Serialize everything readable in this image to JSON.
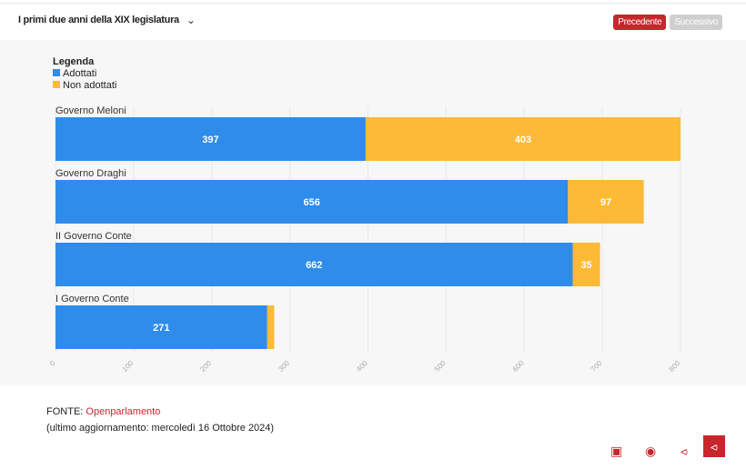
{
  "header": {
    "title": "I primi due anni della XIX legislatura",
    "prev_label": "Precedente",
    "next_label": "Successivo"
  },
  "legend": {
    "title": "Legenda"
  },
  "chart_data": {
    "type": "bar",
    "orientation": "horizontal",
    "stacked": true,
    "categories": [
      "Governo Meloni",
      "Governo Draghi",
      "II Governo Conte",
      "I Governo Conte"
    ],
    "series": [
      {
        "name": "Adottati",
        "color": "#2f8ceb",
        "values": [
          397,
          656,
          662,
          271
        ],
        "labels": [
          "397",
          "656",
          "662",
          "271"
        ]
      },
      {
        "name": "Non adottati",
        "color": "#fdba36",
        "values": [
          403,
          97,
          35,
          9
        ],
        "labels": [
          "403",
          "97",
          "35",
          ""
        ]
      }
    ],
    "xlim": [
      0,
      800
    ],
    "xticks": [
      "0",
      "100",
      "200",
      "300",
      "400",
      "500",
      "600",
      "700",
      "800"
    ],
    "grid": true,
    "legend_position": "top-left"
  },
  "footer": {
    "source_label": "FONTE:",
    "source": "Openparlamento",
    "updated": "(ultimo aggiornamento: mercoledì 16 Ottobre 2024)"
  }
}
